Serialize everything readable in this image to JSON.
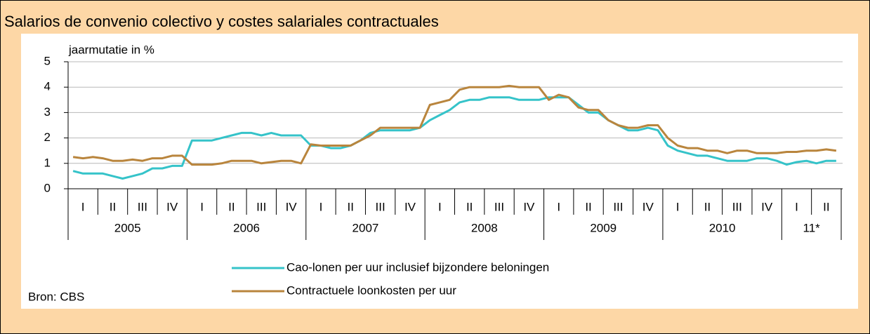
{
  "chart_data": {
    "type": "line",
    "title": "Salarios de convenio colectivo y costes salariales contractuales",
    "y_label": "jaarmutatie in %",
    "source": "Bron: CBS",
    "quarters": [
      "I",
      "II",
      "III",
      "IV",
      "I",
      "II",
      "III",
      "IV",
      "I",
      "II",
      "III",
      "IV",
      "I",
      "II",
      "III",
      "IV",
      "I",
      "II",
      "III",
      "IV",
      "I",
      "II",
      "III",
      "IV",
      "I",
      "II"
    ],
    "years": [
      "2005",
      "2006",
      "2007",
      "2008",
      "2009",
      "2010",
      "11*"
    ],
    "ylim": [
      0,
      5
    ],
    "yticks": [
      0,
      1,
      2,
      3,
      4,
      5
    ],
    "grid": true,
    "series": [
      {
        "name": "Cao-lonen per uur inclusief bijzondere beloningen",
        "color": "#35c3c9",
        "values": [
          0.7,
          0.6,
          0.6,
          0.6,
          0.5,
          0.4,
          0.5,
          0.6,
          0.8,
          0.8,
          0.9,
          0.9,
          1.9,
          1.9,
          1.9,
          2.0,
          2.1,
          2.2,
          2.2,
          2.1,
          2.2,
          2.1,
          2.1,
          2.1,
          1.7,
          1.7,
          1.6,
          1.6,
          1.7,
          1.9,
          2.2,
          2.3,
          2.3,
          2.3,
          2.3,
          2.4,
          2.7,
          2.9,
          3.1,
          3.4,
          3.5,
          3.5,
          3.6,
          3.6,
          3.6,
          3.5,
          3.5,
          3.5,
          3.6,
          3.6,
          3.6,
          3.3,
          3.0,
          3.0,
          2.7,
          2.5,
          2.3,
          2.3,
          2.4,
          2.3,
          1.7,
          1.5,
          1.4,
          1.3,
          1.3,
          1.2,
          1.1,
          1.1,
          1.1,
          1.2,
          1.2,
          1.1,
          0.95,
          1.05,
          1.1,
          1.0,
          1.1,
          1.1
        ]
      },
      {
        "name": "Contractuele loonkosten per uur",
        "color": "#b9853d",
        "values": [
          1.25,
          1.2,
          1.25,
          1.2,
          1.1,
          1.1,
          1.15,
          1.1,
          1.2,
          1.2,
          1.3,
          1.3,
          0.95,
          0.95,
          0.95,
          1.0,
          1.1,
          1.1,
          1.1,
          1.0,
          1.05,
          1.1,
          1.1,
          1.0,
          1.75,
          1.7,
          1.7,
          1.7,
          1.7,
          1.9,
          2.1,
          2.4,
          2.4,
          2.4,
          2.4,
          2.4,
          3.3,
          3.4,
          3.5,
          3.9,
          4.0,
          4.0,
          4.0,
          4.0,
          4.05,
          4.0,
          4.0,
          4.0,
          3.5,
          3.7,
          3.6,
          3.2,
          3.1,
          3.1,
          2.7,
          2.5,
          2.4,
          2.4,
          2.5,
          2.5,
          2.0,
          1.7,
          1.6,
          1.6,
          1.5,
          1.5,
          1.4,
          1.5,
          1.5,
          1.4,
          1.4,
          1.4,
          1.45,
          1.45,
          1.5,
          1.5,
          1.55,
          1.5
        ]
      }
    ]
  }
}
